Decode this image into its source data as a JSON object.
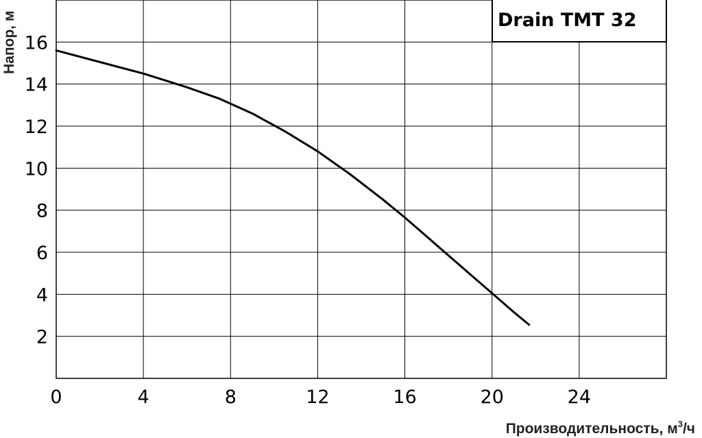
{
  "chart_data": {
    "type": "line",
    "title": "",
    "xlabel": "Производительность, м³/ч",
    "xlabel_main": "Производительность, м",
    "xlabel_sup": "3",
    "xlabel_tail": "/ч",
    "ylabel": "Напор, м",
    "xlim": [
      0,
      28
    ],
    "ylim": [
      0,
      18
    ],
    "xticks": [
      0,
      4,
      8,
      12,
      16,
      20,
      24
    ],
    "yticks": [
      2,
      4,
      6,
      8,
      10,
      12,
      14,
      16
    ],
    "grid": true,
    "legend_position": "top-right",
    "series": [
      {
        "name": "Drain TMT 32",
        "color": "#000000",
        "x": [
          0,
          2,
          4,
          6,
          7.5,
          9,
          10.5,
          12,
          13.5,
          15,
          16,
          17,
          18,
          19,
          20,
          21,
          21.7
        ],
        "y": [
          15.6,
          15.05,
          14.5,
          13.85,
          13.3,
          12.6,
          11.75,
          10.8,
          9.7,
          8.5,
          7.65,
          6.75,
          5.85,
          4.95,
          4.05,
          3.15,
          2.55
        ]
      }
    ]
  }
}
